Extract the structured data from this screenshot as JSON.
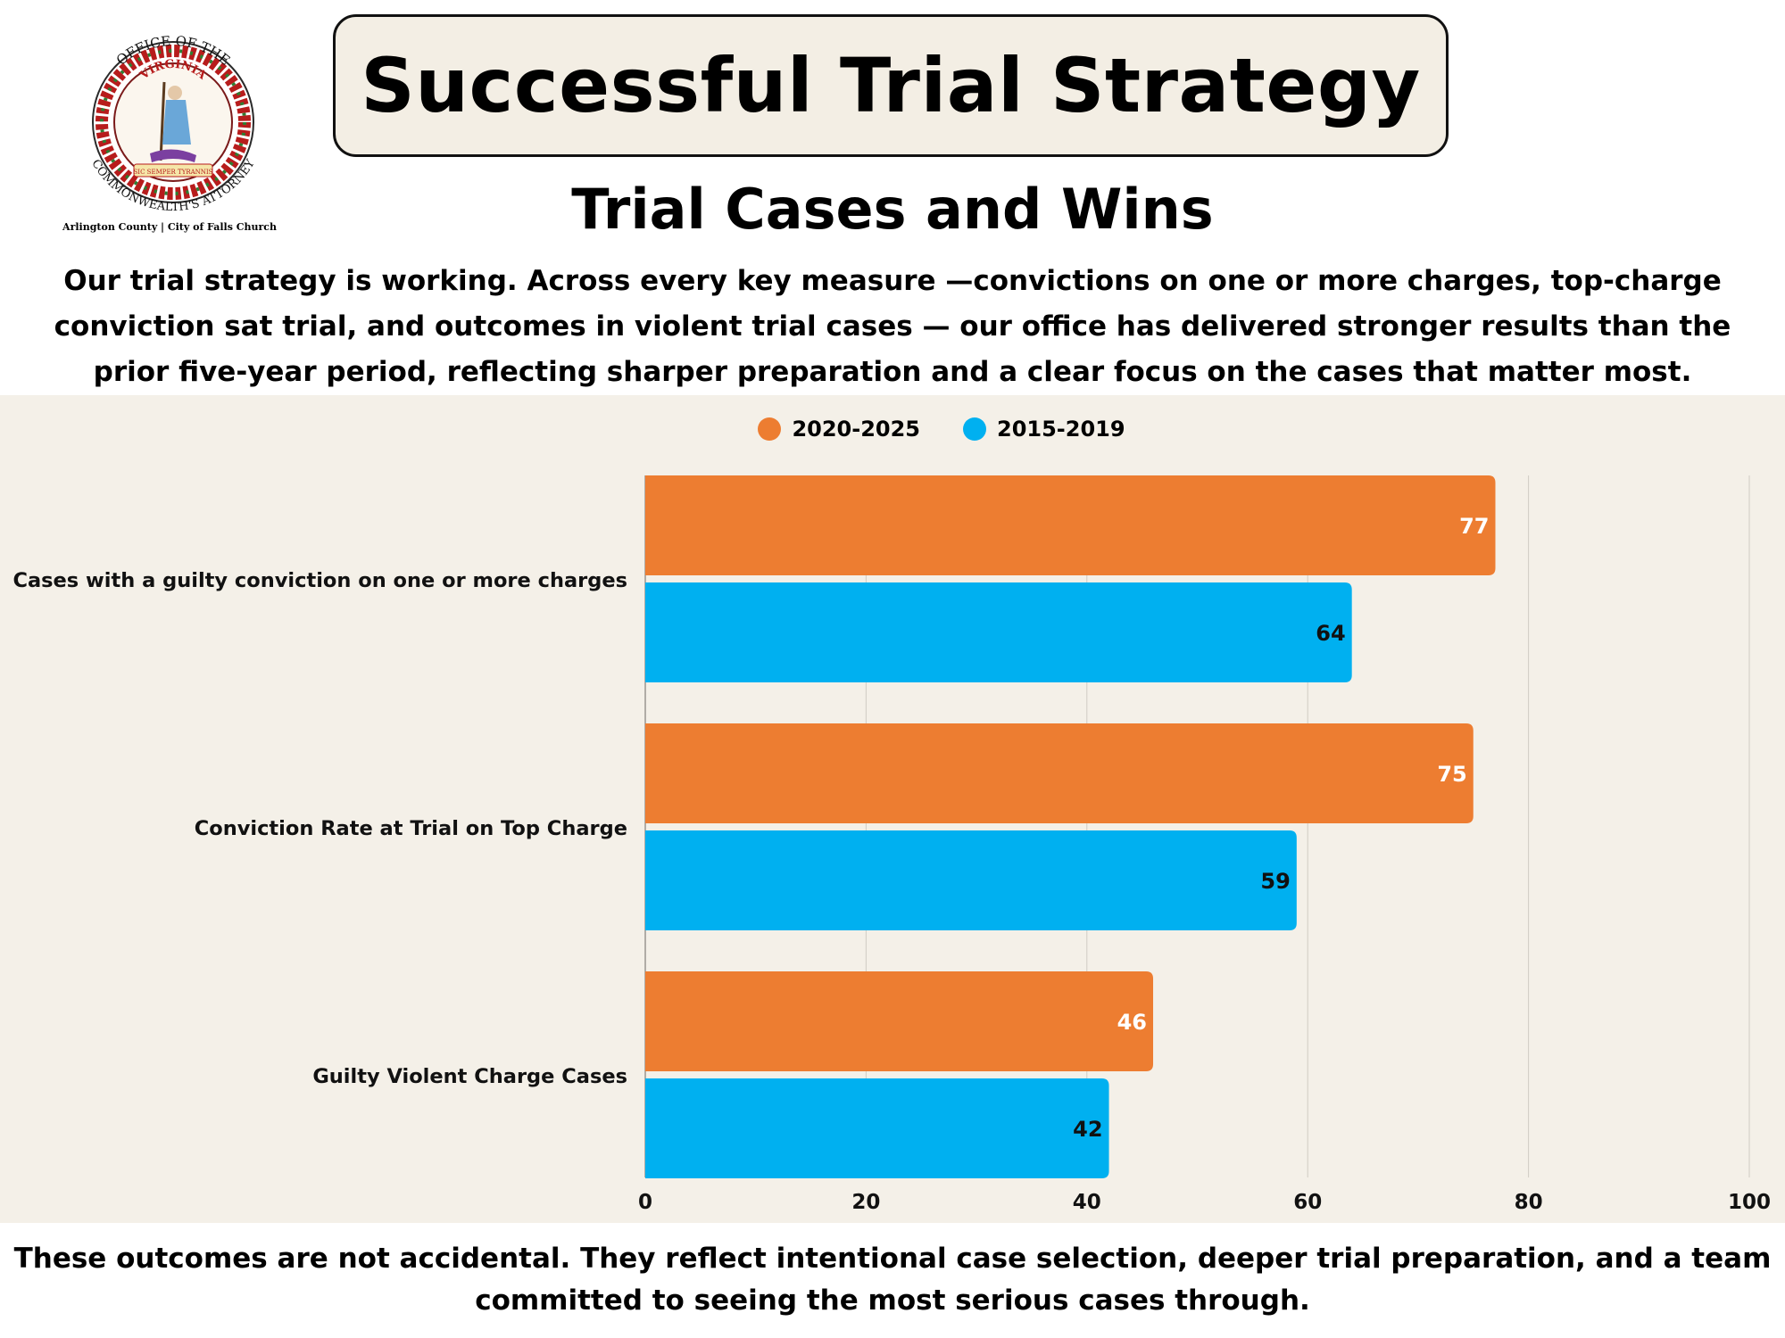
{
  "header": {
    "title": "Successful Trial Strategy",
    "subtitle": "Trial Cases and Wins",
    "intro": "Our trial strategy is working. Across every key measure —convictions on one or more charges, top-charge conviction sat trial, and outcomes in violent trial cases — our office has delivered stronger results than the prior five-year period, reflecting sharper preparation and a clear focus on the cases that matter most."
  },
  "seal": {
    "top_text": "OFFICE OF THE",
    "ring_bottom_text": "COMMONWEALTH'S ATTORNEY",
    "center_text": "VIRGINIA",
    "motto": "SIC SEMPER TYRANNIS",
    "caption": "Arlington County | City of Falls Church"
  },
  "footer": {
    "text": "These outcomes are not accidental. They reflect intentional case selection, deeper trial preparation, and a team committed to seeing the most serious cases through."
  },
  "colors": {
    "series_2020": "#ed7d31",
    "series_2015": "#00b0f0",
    "panel_bg": "#f4f0e8",
    "grid": "#d0ccc4"
  },
  "chart_data": {
    "type": "bar",
    "orientation": "horizontal",
    "categories": [
      "Cases with a guilty conviction on one or more charges",
      "Conviction Rate at Trial on Top Charge",
      "Guilty Violent Charge Cases"
    ],
    "series": [
      {
        "name": "2020-2025",
        "color": "#ed7d31",
        "values": [
          77,
          75,
          46
        ]
      },
      {
        "name": "2015-2019",
        "color": "#00b0f0",
        "values": [
          64,
          59,
          42
        ]
      }
    ],
    "xlim": [
      0,
      100
    ],
    "xticks": [
      0,
      20,
      40,
      60,
      80,
      100
    ],
    "grid": true,
    "legend_position": "top",
    "data_labels": true
  }
}
